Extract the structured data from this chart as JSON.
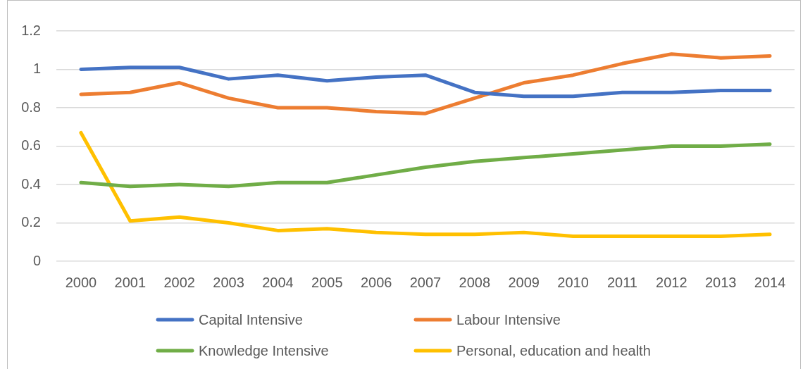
{
  "chart_data": {
    "type": "line",
    "categories": [
      "2000",
      "2001",
      "2002",
      "2003",
      "2004",
      "2005",
      "2006",
      "2007",
      "2008",
      "2009",
      "2010",
      "2011",
      "2012",
      "2013",
      "2014"
    ],
    "series": [
      {
        "name": "Capital Intensive",
        "color": "#4472c4",
        "values": [
          1.0,
          1.01,
          1.01,
          0.95,
          0.97,
          0.94,
          0.96,
          0.97,
          0.88,
          0.86,
          0.86,
          0.88,
          0.88,
          0.89,
          0.89
        ]
      },
      {
        "name": "Labour Intensive",
        "color": "#ed7d31",
        "values": [
          0.87,
          0.88,
          0.93,
          0.85,
          0.8,
          0.8,
          0.78,
          0.77,
          0.85,
          0.93,
          0.97,
          1.03,
          1.08,
          1.06,
          1.07
        ]
      },
      {
        "name": "Knowledge Intensive",
        "color": "#70ad47",
        "values": [
          0.41,
          0.39,
          0.4,
          0.39,
          0.41,
          0.41,
          0.45,
          0.49,
          0.52,
          0.54,
          0.56,
          0.58,
          0.6,
          0.6,
          0.61
        ]
      },
      {
        "name": "Personal, education and health",
        "color": "#ffc000",
        "values": [
          0.67,
          0.21,
          0.23,
          0.2,
          0.16,
          0.17,
          0.15,
          0.14,
          0.14,
          0.15,
          0.13,
          0.13,
          0.13,
          0.13,
          0.14
        ]
      }
    ],
    "ylim": [
      0,
      1.2
    ],
    "yticks": [
      0,
      0.2,
      0.4,
      0.6,
      0.8,
      1,
      1.2
    ],
    "grid": "y",
    "legend": "bottom",
    "marker": "none",
    "line_style": "solid"
  }
}
